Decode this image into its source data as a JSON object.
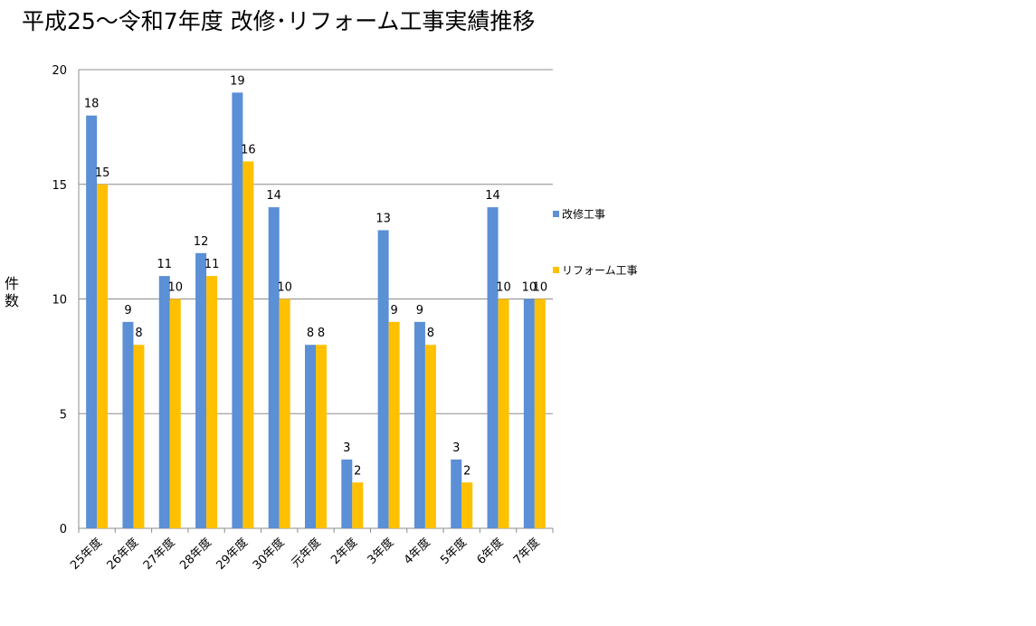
{
  "chart_data": {
    "type": "bar",
    "title": "平成25〜令和7年度 改修･リフォーム工事実績推移",
    "ylabel": "件数",
    "xlabel": "",
    "categories": [
      "25年度",
      "26年度",
      "27年度",
      "28年度",
      "29年度",
      "30年度",
      "元年度",
      "2年度",
      "3年度",
      "4年度",
      "5年度",
      "6年度",
      "7年度"
    ],
    "series": [
      {
        "name": "改修工事",
        "color": "#5B8FD6",
        "values": [
          18,
          9,
          11,
          12,
          19,
          14,
          8,
          3,
          13,
          9,
          3,
          14,
          10
        ]
      },
      {
        "name": "リフォーム工事",
        "color": "#FFC000",
        "values": [
          15,
          8,
          10,
          11,
          16,
          10,
          8,
          2,
          9,
          8,
          2,
          10,
          10
        ]
      }
    ],
    "ylim": [
      0,
      20
    ],
    "yticks": [
      0,
      5,
      10,
      15,
      20
    ],
    "grid": true,
    "legend_position": "right",
    "data_labels": true
  }
}
